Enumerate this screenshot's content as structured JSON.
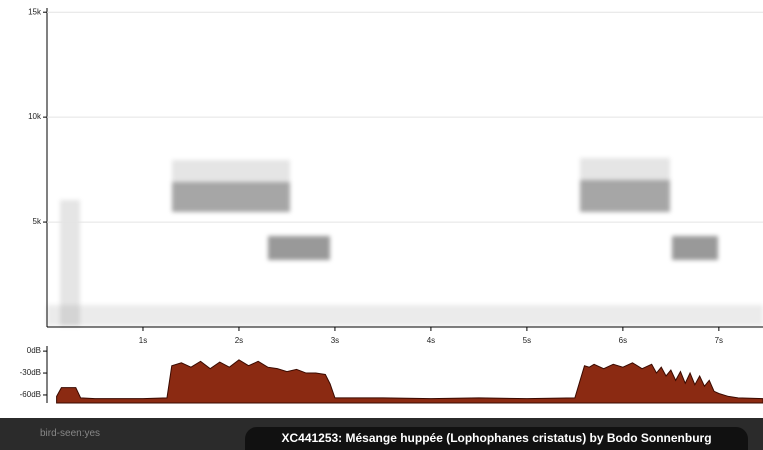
{
  "chart_data": [
    {
      "type": "spectrogram",
      "xlim": [
        0,
        7.46
      ],
      "ylim": [
        0,
        15200
      ],
      "xticks": [
        {
          "value": 1,
          "label": "1s"
        },
        {
          "value": 2,
          "label": "2s"
        },
        {
          "value": 3,
          "label": "3s"
        },
        {
          "value": 4,
          "label": "4s"
        },
        {
          "value": 5,
          "label": "5s"
        },
        {
          "value": 6,
          "label": "6s"
        },
        {
          "value": 7,
          "label": "7s"
        }
      ],
      "yticks": [
        {
          "value": 5000,
          "label": "5k"
        },
        {
          "value": 10000,
          "label": "10k"
        },
        {
          "value": 15000,
          "label": "15k"
        }
      ],
      "grid": true
    },
    {
      "type": "area",
      "color": "#8b2a12",
      "xlim": [
        0,
        7.46
      ],
      "ylim": [
        -71,
        7
      ],
      "yticks": [
        {
          "value": 0,
          "label": "0dB"
        },
        {
          "value": -30,
          "label": "-30dB"
        },
        {
          "value": -60,
          "label": "-60dB"
        }
      ],
      "x": [
        0.1,
        0.15,
        0.3,
        0.35,
        0.5,
        1.0,
        1.25,
        1.3,
        1.4,
        1.5,
        1.6,
        1.7,
        1.8,
        1.9,
        2.0,
        2.1,
        2.2,
        2.3,
        2.4,
        2.5,
        2.6,
        2.7,
        2.8,
        2.9,
        2.95,
        3.0,
        3.5,
        4.0,
        4.5,
        5.0,
        5.5,
        5.6,
        5.65,
        5.7,
        5.8,
        5.9,
        6.0,
        6.1,
        6.2,
        6.3,
        6.35,
        6.4,
        6.45,
        6.5,
        6.55,
        6.6,
        6.65,
        6.7,
        6.75,
        6.8,
        6.85,
        6.9,
        6.95,
        7.0,
        7.1,
        7.2,
        7.46
      ],
      "values": [
        -62,
        -50,
        -50,
        -64,
        -65,
        -65,
        -64,
        -20,
        -16,
        -22,
        -14,
        -24,
        -15,
        -22,
        -12,
        -20,
        -14,
        -22,
        -24,
        -28,
        -25,
        -30,
        -30,
        -32,
        -45,
        -64,
        -64,
        -65,
        -64,
        -65,
        -64,
        -20,
        -22,
        -18,
        -24,
        -18,
        -22,
        -16,
        -24,
        -18,
        -30,
        -22,
        -34,
        -26,
        -40,
        -28,
        -44,
        -30,
        -46,
        -34,
        -48,
        -40,
        -55,
        -58,
        -62,
        -64,
        -65
      ]
    }
  ],
  "footer": {
    "tag": "bird-seen:yes",
    "title": "XC441253: Mésange huppée (Lophophanes cristatus) by Bodo Sonnenburg"
  }
}
